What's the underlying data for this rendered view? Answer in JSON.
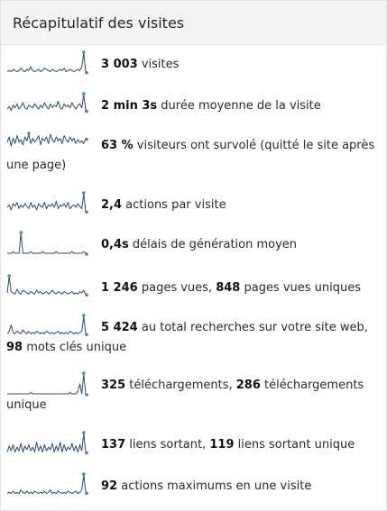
{
  "widget": {
    "title": "Récapitulatif des visites"
  },
  "colors": {
    "line": "#2c4a72",
    "max_marker": "#3fa84a",
    "last_marker": "#3d7fd8"
  },
  "rows": [
    {
      "parts": [
        {
          "b": "3 003"
        },
        {
          "t": " visites"
        }
      ],
      "spark": [
        1,
        2,
        1,
        3,
        2,
        1,
        2,
        4,
        2,
        1,
        3,
        2,
        5,
        2,
        1,
        2,
        3,
        1,
        2,
        4,
        3,
        2,
        1,
        3,
        2,
        1,
        2,
        3,
        2,
        4,
        1,
        2,
        3,
        2,
        1,
        2,
        3,
        2,
        5,
        16,
        1
      ]
    },
    {
      "parts": [
        {
          "b": "2 min 3s"
        },
        {
          "t": " durée moyenne de la visite"
        }
      ],
      "spark": [
        4,
        6,
        3,
        7,
        5,
        8,
        4,
        6,
        9,
        5,
        4,
        7,
        6,
        5,
        8,
        6,
        4,
        7,
        5,
        9,
        6,
        4,
        8,
        5,
        7,
        6,
        10,
        5,
        4,
        8,
        6,
        7,
        5,
        9,
        6,
        4,
        7,
        8,
        5,
        15,
        3
      ]
    },
    {
      "parts": [
        {
          "b": "63 %"
        },
        {
          "t": " visiteurs ont survolé (quitté le site après une page)"
        }
      ],
      "spark": [
        9,
        13,
        6,
        12,
        8,
        14,
        9,
        11,
        7,
        13,
        10,
        15,
        8,
        12,
        9,
        11,
        14,
        7,
        12,
        10,
        13,
        8,
        15,
        11,
        9,
        13,
        10,
        12,
        8,
        14,
        11,
        9,
        13,
        10,
        12,
        8,
        11,
        9,
        10,
        8,
        12
      ]
    },
    {
      "parts": [
        {
          "b": "2,4"
        },
        {
          "t": " actions par visite"
        }
      ],
      "spark": [
        5,
        7,
        3,
        8,
        6,
        9,
        4,
        7,
        5,
        8,
        6,
        4,
        9,
        5,
        7,
        3,
        8,
        6,
        5,
        9,
        4,
        7,
        6,
        8,
        5,
        10,
        4,
        7,
        6,
        8,
        5,
        9,
        4,
        6,
        7,
        5,
        8,
        6,
        4,
        16,
        2
      ]
    },
    {
      "parts": [
        {
          "b": "0,4s"
        },
        {
          "t": " délais de génération moyen"
        }
      ],
      "spark": [
        0,
        0,
        0,
        1,
        0,
        0,
        0,
        12,
        0,
        0,
        0,
        0,
        1,
        0,
        0,
        0,
        0,
        0,
        1,
        0,
        0,
        0,
        0,
        0,
        0,
        1,
        0,
        0,
        0,
        0,
        0,
        0,
        0,
        1,
        0,
        0,
        0,
        0,
        0,
        1,
        0
      ]
    },
    {
      "parts": [
        {
          "b": "1 246"
        },
        {
          "t": " pages vues, "
        },
        {
          "b": "848"
        },
        {
          "t": " pages vues uniques"
        }
      ],
      "spark": [
        3,
        16,
        4,
        3,
        2,
        6,
        3,
        2,
        5,
        4,
        3,
        2,
        4,
        3,
        2,
        5,
        3,
        4,
        2,
        3,
        4,
        2,
        3,
        5,
        3,
        2,
        4,
        3,
        2,
        4,
        3,
        2,
        3,
        4,
        2,
        3,
        2,
        4,
        3,
        5,
        2
      ]
    },
    {
      "parts": [
        {
          "b": "5 424"
        },
        {
          "t": " au total recherches sur votre site web, "
        },
        {
          "b": "98"
        },
        {
          "t": " mots clés unique"
        }
      ],
      "spark": [
        2,
        4,
        9,
        3,
        2,
        4,
        3,
        2,
        5,
        3,
        2,
        4,
        2,
        3,
        2,
        4,
        3,
        2,
        3,
        2,
        4,
        3,
        2,
        3,
        2,
        3,
        4,
        2,
        3,
        2,
        3,
        2,
        4,
        3,
        2,
        3,
        2,
        3,
        4,
        16,
        2
      ]
    },
    {
      "parts": [
        {
          "b": "325"
        },
        {
          "t": " téléchargements, "
        },
        {
          "b": "286"
        },
        {
          "t": " téléchargements unique"
        }
      ],
      "spark": [
        0,
        0,
        0,
        0,
        0,
        0,
        0,
        0,
        0,
        0,
        0,
        0,
        1,
        0,
        0,
        0,
        0,
        0,
        0,
        0,
        0,
        0,
        0,
        0,
        0,
        0,
        0,
        0,
        0,
        0,
        0,
        0,
        1,
        0,
        0,
        0,
        2,
        8,
        0,
        16,
        0
      ]
    },
    {
      "parts": [
        {
          "b": "137"
        },
        {
          "t": " liens sortant, "
        },
        {
          "b": "119"
        },
        {
          "t": " liens sortant unique"
        }
      ],
      "spark": [
        1,
        6,
        2,
        7,
        1,
        5,
        2,
        8,
        1,
        6,
        3,
        7,
        2,
        5,
        1,
        9,
        2,
        6,
        1,
        7,
        2,
        5,
        3,
        8,
        1,
        6,
        2,
        9,
        1,
        7,
        2,
        5,
        3,
        8,
        2,
        6,
        1,
        7,
        2,
        16,
        1
      ]
    },
    {
      "parts": [
        {
          "b": "92"
        },
        {
          "t": " actions maximums en une visite"
        }
      ],
      "spark": [
        1,
        2,
        1,
        3,
        1,
        2,
        1,
        4,
        2,
        1,
        3,
        1,
        2,
        1,
        3,
        2,
        1,
        2,
        1,
        3,
        1,
        2,
        4,
        1,
        2,
        1,
        3,
        2,
        1,
        2,
        1,
        3,
        2,
        1,
        2,
        3,
        1,
        2,
        4,
        16,
        2
      ]
    }
  ]
}
